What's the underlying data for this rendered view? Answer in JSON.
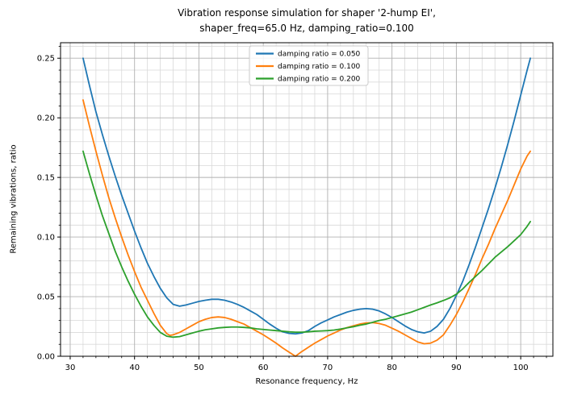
{
  "figure": {
    "title_line1": "Vibration response simulation for shaper '2-hump EI',",
    "title_line2": "shaper_freq=65.0 Hz, damping_ratio=0.100"
  },
  "chart_data": {
    "type": "line",
    "title": "Vibration response simulation for shaper '2-hump EI', shaper_freq=65.0 Hz, damping_ratio=0.100",
    "xlabel": "Resonance frequency, Hz",
    "ylabel": "Remaining vibrations, ratio",
    "xlim": [
      28.5,
      105.0
    ],
    "ylim": [
      0,
      0.263
    ],
    "grid": true,
    "x_major_ticks": [
      30,
      40,
      50,
      60,
      70,
      80,
      90,
      100
    ],
    "x_tick_labels": [
      "30",
      "40",
      "50",
      "60",
      "70",
      "80",
      "90",
      "100"
    ],
    "x_minor_step": 2,
    "y_major_ticks": [
      0.0,
      0.05,
      0.1,
      0.15,
      0.2,
      0.25
    ],
    "y_tick_labels": [
      "0.00",
      "0.05",
      "0.10",
      "0.15",
      "0.20",
      "0.25"
    ],
    "y_minor_step": 0.01,
    "legend": {
      "position": "upper center",
      "border_color": "#cccccc",
      "background": "rgba(255,255,255,0.85)",
      "entries": [
        "damping ratio = 0.050",
        "damping ratio = 0.100",
        "damping ratio = 0.200"
      ]
    },
    "grid_major_color": "#b0b0b0",
    "grid_minor_color": "#d9d9d9",
    "spine_color": "#000000",
    "series": [
      {
        "name": "damping ratio = 0.050",
        "color": "#1f77b4",
        "points": [
          [
            32,
            0.25
          ],
          [
            33,
            0.227
          ],
          [
            34,
            0.205
          ],
          [
            35,
            0.186
          ],
          [
            36,
            0.168
          ],
          [
            37,
            0.151
          ],
          [
            38,
            0.135
          ],
          [
            39,
            0.12
          ],
          [
            40,
            0.105
          ],
          [
            41,
            0.091
          ],
          [
            42,
            0.078
          ],
          [
            43,
            0.067
          ],
          [
            44,
            0.057
          ],
          [
            45,
            0.049
          ],
          [
            46,
            0.0435
          ],
          [
            47,
            0.042
          ],
          [
            48,
            0.043
          ],
          [
            49,
            0.0445
          ],
          [
            50,
            0.046
          ],
          [
            51,
            0.047
          ],
          [
            52,
            0.0478
          ],
          [
            53,
            0.0478
          ],
          [
            54,
            0.047
          ],
          [
            55,
            0.0455
          ],
          [
            56,
            0.0435
          ],
          [
            57,
            0.041
          ],
          [
            58,
            0.038
          ],
          [
            59,
            0.035
          ],
          [
            60,
            0.031
          ],
          [
            61,
            0.027
          ],
          [
            62,
            0.0235
          ],
          [
            63,
            0.0205
          ],
          [
            64,
            0.0192
          ],
          [
            65,
            0.0188
          ],
          [
            66,
            0.0195
          ],
          [
            67,
            0.0215
          ],
          [
            68,
            0.025
          ],
          [
            69,
            0.028
          ],
          [
            70,
            0.0305
          ],
          [
            71,
            0.033
          ],
          [
            72,
            0.035
          ],
          [
            73,
            0.037
          ],
          [
            74,
            0.0385
          ],
          [
            75,
            0.0395
          ],
          [
            76,
            0.04
          ],
          [
            77,
            0.0395
          ],
          [
            78,
            0.038
          ],
          [
            79,
            0.0355
          ],
          [
            80,
            0.0325
          ],
          [
            81,
            0.029
          ],
          [
            82,
            0.0255
          ],
          [
            83,
            0.0225
          ],
          [
            84,
            0.0205
          ],
          [
            85,
            0.0195
          ],
          [
            86,
            0.021
          ],
          [
            87,
            0.025
          ],
          [
            88,
            0.031
          ],
          [
            89,
            0.04
          ],
          [
            90,
            0.051
          ],
          [
            91,
            0.063
          ],
          [
            92,
            0.077
          ],
          [
            93,
            0.092
          ],
          [
            94,
            0.108
          ],
          [
            95,
            0.124
          ],
          [
            96,
            0.141
          ],
          [
            97,
            0.159
          ],
          [
            98,
            0.178
          ],
          [
            99,
            0.198
          ],
          [
            100,
            0.219
          ],
          [
            101,
            0.24
          ],
          [
            101.5,
            0.25
          ]
        ]
      },
      {
        "name": "damping ratio = 0.100",
        "color": "#ff7f0e",
        "points": [
          [
            32,
            0.215
          ],
          [
            33,
            0.193
          ],
          [
            34,
            0.172
          ],
          [
            35,
            0.152
          ],
          [
            36,
            0.133
          ],
          [
            37,
            0.116
          ],
          [
            38,
            0.1
          ],
          [
            39,
            0.085
          ],
          [
            40,
            0.071
          ],
          [
            41,
            0.058
          ],
          [
            42,
            0.047
          ],
          [
            43,
            0.036
          ],
          [
            44,
            0.026
          ],
          [
            45,
            0.019
          ],
          [
            45.5,
            0.0175
          ],
          [
            46,
            0.018
          ],
          [
            47,
            0.02
          ],
          [
            48,
            0.023
          ],
          [
            49,
            0.026
          ],
          [
            50,
            0.029
          ],
          [
            51,
            0.031
          ],
          [
            52,
            0.0325
          ],
          [
            53,
            0.033
          ],
          [
            54,
            0.0325
          ],
          [
            55,
            0.031
          ],
          [
            56,
            0.029
          ],
          [
            57,
            0.027
          ],
          [
            58,
            0.024
          ],
          [
            59,
            0.021
          ],
          [
            60,
            0.018
          ],
          [
            61,
            0.0145
          ],
          [
            62,
            0.011
          ],
          [
            63,
            0.007
          ],
          [
            64,
            0.0035
          ],
          [
            65,
            0.0
          ],
          [
            66,
            0.004
          ],
          [
            67,
            0.0075
          ],
          [
            68,
            0.011
          ],
          [
            69,
            0.014
          ],
          [
            70,
            0.017
          ],
          [
            71,
            0.0195
          ],
          [
            72,
            0.022
          ],
          [
            73,
            0.024
          ],
          [
            74,
            0.0255
          ],
          [
            75,
            0.027
          ],
          [
            76,
            0.028
          ],
          [
            77,
            0.0282
          ],
          [
            78,
            0.0275
          ],
          [
            79,
            0.026
          ],
          [
            80,
            0.0235
          ],
          [
            81,
            0.021
          ],
          [
            82,
            0.018
          ],
          [
            83,
            0.015
          ],
          [
            84,
            0.012
          ],
          [
            85,
            0.0105
          ],
          [
            86,
            0.011
          ],
          [
            87,
            0.0135
          ],
          [
            88,
            0.018
          ],
          [
            89,
            0.026
          ],
          [
            90,
            0.035
          ],
          [
            91,
            0.0455
          ],
          [
            92,
            0.057
          ],
          [
            93,
            0.069
          ],
          [
            94,
            0.082
          ],
          [
            95,
            0.094
          ],
          [
            96,
            0.107
          ],
          [
            97,
            0.119
          ],
          [
            98,
            0.131
          ],
          [
            99,
            0.144
          ],
          [
            100,
            0.157
          ],
          [
            101,
            0.168
          ],
          [
            101.5,
            0.172
          ]
        ]
      },
      {
        "name": "damping ratio = 0.200",
        "color": "#2ca02c",
        "points": [
          [
            32,
            0.172
          ],
          [
            33,
            0.153
          ],
          [
            34,
            0.135
          ],
          [
            35,
            0.118
          ],
          [
            36,
            0.103
          ],
          [
            37,
            0.088
          ],
          [
            38,
            0.075
          ],
          [
            39,
            0.063
          ],
          [
            40,
            0.052
          ],
          [
            41,
            0.042
          ],
          [
            42,
            0.033
          ],
          [
            43,
            0.026
          ],
          [
            44,
            0.02
          ],
          [
            45,
            0.0168
          ],
          [
            46,
            0.016
          ],
          [
            47,
            0.0165
          ],
          [
            48,
            0.018
          ],
          [
            49,
            0.0195
          ],
          [
            50,
            0.021
          ],
          [
            51,
            0.0222
          ],
          [
            52,
            0.023
          ],
          [
            53,
            0.0238
          ],
          [
            54,
            0.0242
          ],
          [
            55,
            0.0245
          ],
          [
            56,
            0.0245
          ],
          [
            57,
            0.0242
          ],
          [
            58,
            0.0238
          ],
          [
            59,
            0.023
          ],
          [
            60,
            0.0225
          ],
          [
            61,
            0.022
          ],
          [
            62,
            0.0215
          ],
          [
            63,
            0.021
          ],
          [
            64,
            0.0205
          ],
          [
            65,
            0.0202
          ],
          [
            66,
            0.0202
          ],
          [
            67,
            0.0205
          ],
          [
            68,
            0.021
          ],
          [
            69,
            0.0212
          ],
          [
            70,
            0.0215
          ],
          [
            71,
            0.022
          ],
          [
            72,
            0.0228
          ],
          [
            73,
            0.0238
          ],
          [
            74,
            0.0248
          ],
          [
            75,
            0.026
          ],
          [
            76,
            0.027
          ],
          [
            77,
            0.0285
          ],
          [
            78,
            0.03
          ],
          [
            79,
            0.031
          ],
          [
            80,
            0.0325
          ],
          [
            81,
            0.034
          ],
          [
            82,
            0.0355
          ],
          [
            83,
            0.037
          ],
          [
            84,
            0.039
          ],
          [
            85,
            0.041
          ],
          [
            86,
            0.043
          ],
          [
            87,
            0.0448
          ],
          [
            88,
            0.0468
          ],
          [
            89,
            0.049
          ],
          [
            90,
            0.052
          ],
          [
            91,
            0.0565
          ],
          [
            92,
            0.062
          ],
          [
            93,
            0.067
          ],
          [
            94,
            0.072
          ],
          [
            95,
            0.0775
          ],
          [
            96,
            0.083
          ],
          [
            97,
            0.0875
          ],
          [
            98,
            0.092
          ],
          [
            99,
            0.097
          ],
          [
            100,
            0.102
          ],
          [
            101,
            0.109
          ],
          [
            101.5,
            0.113
          ]
        ]
      }
    ]
  }
}
